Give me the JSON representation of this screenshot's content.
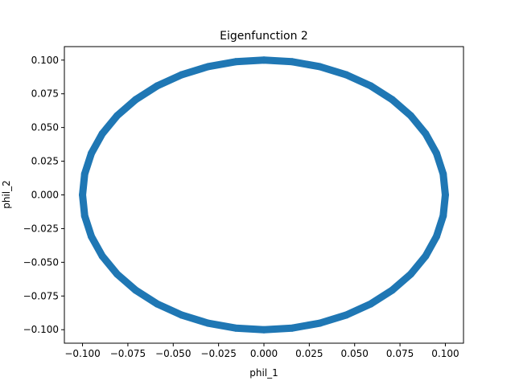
{
  "chart_data": {
    "type": "scatter",
    "title": "Eigenfunction 2",
    "xlabel": "phil_1",
    "ylabel": "phil_2",
    "xlim": [
      -0.11,
      0.11
    ],
    "ylim": [
      -0.11,
      0.11
    ],
    "xticks": [
      -0.1,
      -0.075,
      -0.05,
      -0.025,
      0.0,
      0.025,
      0.05,
      0.075,
      0.1
    ],
    "yticks": [
      -0.1,
      -0.075,
      -0.05,
      -0.025,
      0.0,
      0.025,
      0.05,
      0.075,
      0.1
    ],
    "xtick_labels": [
      "−0.100",
      "−0.075",
      "−0.050",
      "−0.025",
      "0.000",
      "0.025",
      "0.050",
      "0.075",
      "0.100"
    ],
    "ytick_labels": [
      "−0.100",
      "−0.075",
      "−0.050",
      "−0.025",
      "0.000",
      "0.025",
      "0.050",
      "0.075",
      "0.100"
    ],
    "grid": false,
    "legend": "none",
    "marker_color": "#1f77b4",
    "series": [
      {
        "points": [
          [
            0.1,
            0.0
          ],
          [
            0.0988,
            0.0156
          ],
          [
            0.0951,
            0.0309
          ],
          [
            0.0891,
            0.0454
          ],
          [
            0.0809,
            0.0588
          ],
          [
            0.0707,
            0.0707
          ],
          [
            0.0588,
            0.0809
          ],
          [
            0.0454,
            0.0891
          ],
          [
            0.0309,
            0.0951
          ],
          [
            0.0156,
            0.0988
          ],
          [
            0.0,
            0.1
          ],
          [
            -0.0156,
            0.0988
          ],
          [
            -0.0309,
            0.0951
          ],
          [
            -0.0454,
            0.0891
          ],
          [
            -0.0588,
            0.0809
          ],
          [
            -0.0707,
            0.0707
          ],
          [
            -0.0809,
            0.0588
          ],
          [
            -0.0891,
            0.0454
          ],
          [
            -0.0951,
            0.0309
          ],
          [
            -0.0988,
            0.0156
          ],
          [
            -0.1,
            0.0
          ],
          [
            -0.0988,
            -0.0156
          ],
          [
            -0.0951,
            -0.0309
          ],
          [
            -0.0891,
            -0.0454
          ],
          [
            -0.0809,
            -0.0588
          ],
          [
            -0.0707,
            -0.0707
          ],
          [
            -0.0588,
            -0.0809
          ],
          [
            -0.0454,
            -0.0891
          ],
          [
            -0.0309,
            -0.0951
          ],
          [
            -0.0156,
            -0.0988
          ],
          [
            0.0,
            -0.1
          ],
          [
            0.0156,
            -0.0988
          ],
          [
            0.0309,
            -0.0951
          ],
          [
            0.0454,
            -0.0891
          ],
          [
            0.0588,
            -0.0809
          ],
          [
            0.0707,
            -0.0707
          ],
          [
            0.0809,
            -0.0588
          ],
          [
            0.0891,
            -0.0454
          ],
          [
            0.0951,
            -0.0309
          ],
          [
            0.0988,
            -0.0156
          ]
        ]
      }
    ]
  }
}
